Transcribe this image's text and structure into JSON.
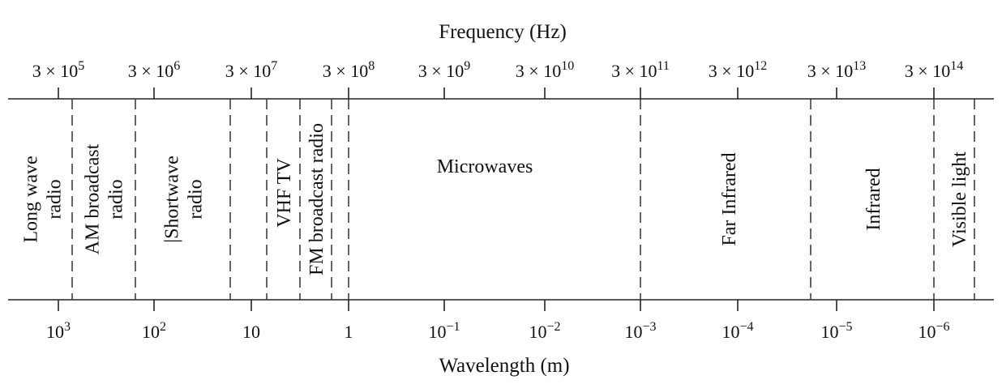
{
  "top_axis": {
    "title": "Frequency (Hz)",
    "ticks": [
      {
        "base": "3 × 10",
        "exp": "5"
      },
      {
        "base": "3 × 10",
        "exp": "6"
      },
      {
        "base": "3 × 10",
        "exp": "7"
      },
      {
        "base": "3 × 10",
        "exp": "8"
      },
      {
        "base": "3 × 10",
        "exp": "9"
      },
      {
        "base": "3 × 10",
        "exp": "10"
      },
      {
        "base": "3 × 10",
        "exp": "11"
      },
      {
        "base": "3 × 10",
        "exp": "12"
      },
      {
        "base": "3 × 10",
        "exp": "13"
      },
      {
        "base": "3 × 10",
        "exp": "14"
      }
    ]
  },
  "bottom_axis": {
    "title": "Wavelength (m)",
    "ticks": [
      {
        "base": "10",
        "exp": "3"
      },
      {
        "base": "10",
        "exp": "2"
      },
      {
        "base": "10",
        "exp": ""
      },
      {
        "base": "1",
        "exp": ""
      },
      {
        "base": "10",
        "exp": "−1"
      },
      {
        "base": "10",
        "exp": "−2"
      },
      {
        "base": "10",
        "exp": "−3"
      },
      {
        "base": "10",
        "exp": "−4"
      },
      {
        "base": "10",
        "exp": "−5"
      },
      {
        "base": "10",
        "exp": "−6"
      }
    ]
  },
  "bands": [
    {
      "lines": [
        "Long wave",
        "radio"
      ]
    },
    {
      "lines": [
        "AM broadcast",
        "radio"
      ]
    },
    {
      "lines": [
        "|Shortwave",
        "radio"
      ]
    },
    {
      "lines": [
        "VHF TV"
      ]
    },
    {
      "lines": [
        "FM broadcast radio"
      ]
    },
    {
      "lines": [
        "Microwaves"
      ]
    },
    {
      "lines": [
        "Far Infrared"
      ]
    },
    {
      "lines": [
        "Infrared"
      ]
    },
    {
      "lines": [
        "Visible light"
      ]
    }
  ]
}
